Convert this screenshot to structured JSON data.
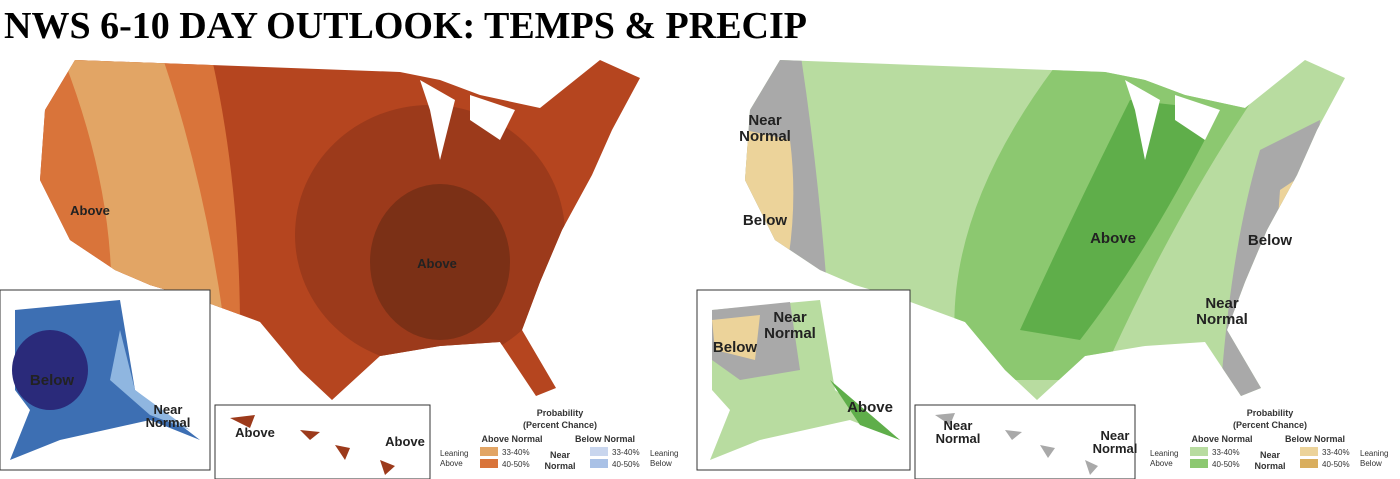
{
  "title": "NWS 6-10 DAY OUTLOOK:  TEMPS & PRECIP",
  "maps": [
    {
      "labels": [
        [
          "Above"
        ],
        [
          "Above"
        ],
        [
          "Below"
        ],
        [
          "Near",
          "Normal"
        ],
        [
          "Above"
        ],
        [
          "Above"
        ]
      ],
      "legend": {
        "title": "Probability",
        "subtitle": "(Percent Chance)",
        "above_header": "Above Normal",
        "below_header": "Below Normal",
        "leaning_above": [
          "Leaning",
          "Above"
        ],
        "near_normal": [
          "Near",
          "Normal"
        ],
        "leaning_below": [
          "Leaning",
          "Below"
        ],
        "above_ranges": [
          "33-40%",
          "40-50%"
        ],
        "below_ranges": [
          "33-40%",
          "40-50%"
        ]
      }
    },
    {
      "labels": [
        [
          "Near",
          "Normal"
        ],
        [
          "Below"
        ],
        [
          "Above"
        ],
        [
          "Below"
        ],
        [
          "Near",
          "Normal"
        ],
        [
          "Near",
          "Normal"
        ],
        [
          "Below"
        ],
        [
          "Above"
        ],
        [
          "Near",
          "Normal"
        ],
        [
          "Near",
          "Normal"
        ]
      ],
      "legend": {
        "title": "Probability",
        "subtitle": "(Percent Chance)",
        "above_header": "Above Normal",
        "below_header": "Below Normal",
        "leaning_above": [
          "Leaning",
          "Above"
        ],
        "near_normal": [
          "Near",
          "Normal"
        ],
        "leaning_below": [
          "Leaning",
          "Below"
        ],
        "above_ranges": [
          "33-40%",
          "40-50%"
        ],
        "below_ranges": [
          "33-40%",
          "40-50%"
        ]
      }
    }
  ]
}
